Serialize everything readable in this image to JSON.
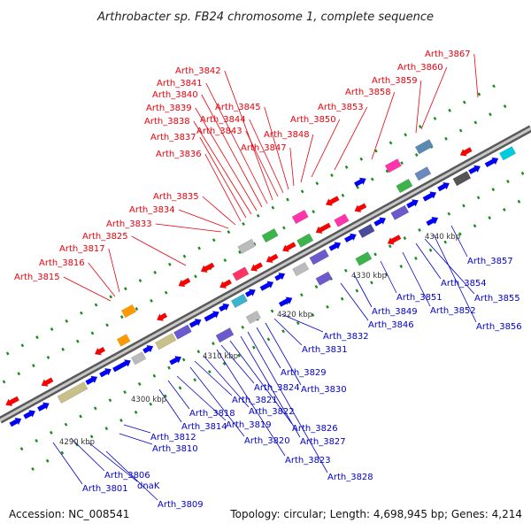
{
  "title": "Arthrobacter sp. FB24 chromosome 1, complete sequence",
  "footer": {
    "accession": "Accession: NC_008541",
    "summary": "Topology: circular; Length: 4,698,945 bp; Genes: 4,214"
  },
  "ticks": [
    "4290 kbp",
    "4300 kbp",
    "4310 kbp",
    "4320 kbp",
    "4330 kbp",
    "4340 kbp"
  ],
  "colors": {
    "forward_label": "#e8000b",
    "reverse_label": "#0000c8",
    "forward_gene": "#ff0000",
    "reverse_gene": "#0000ff",
    "backbone": "#808080"
  },
  "labels_top": [
    "Arth_3815",
    "Arth_3816",
    "Arth_3817",
    "Arth_3825",
    "Arth_3833",
    "Arth_3834",
    "Arth_3835",
    "Arth_3836",
    "Arth_3837",
    "Arth_3838",
    "Arth_3839",
    "Arth_3840",
    "Arth_3841",
    "Arth_3842",
    "Arth_3843",
    "Arth_3844",
    "Arth_3845",
    "Arth_3847",
    "Arth_3848",
    "Arth_3850",
    "Arth_3853",
    "Arth_3858",
    "Arth_3859",
    "Arth_3860",
    "Arth_3867"
  ],
  "labels_bottom": [
    "Arth_3801",
    "Arth_3806",
    "dnaK",
    "Arth_3809",
    "Arth_3810",
    "Arth_3812",
    "Arth_3814",
    "Arth_3818",
    "Arth_3819",
    "Arth_3820",
    "Arth_3821",
    "Arth_3822",
    "Arth_3823",
    "Arth_3824",
    "Arth_3826",
    "Arth_3827",
    "Arth_3828",
    "Arth_3829",
    "Arth_3830",
    "Arth_3831",
    "Arth_3832",
    "Arth_3846",
    "Arth_3849",
    "Arth_3851",
    "Arth_3852",
    "Arth_3854",
    "Arth_3855",
    "Arth_3856",
    "Arth_3857"
  ]
}
